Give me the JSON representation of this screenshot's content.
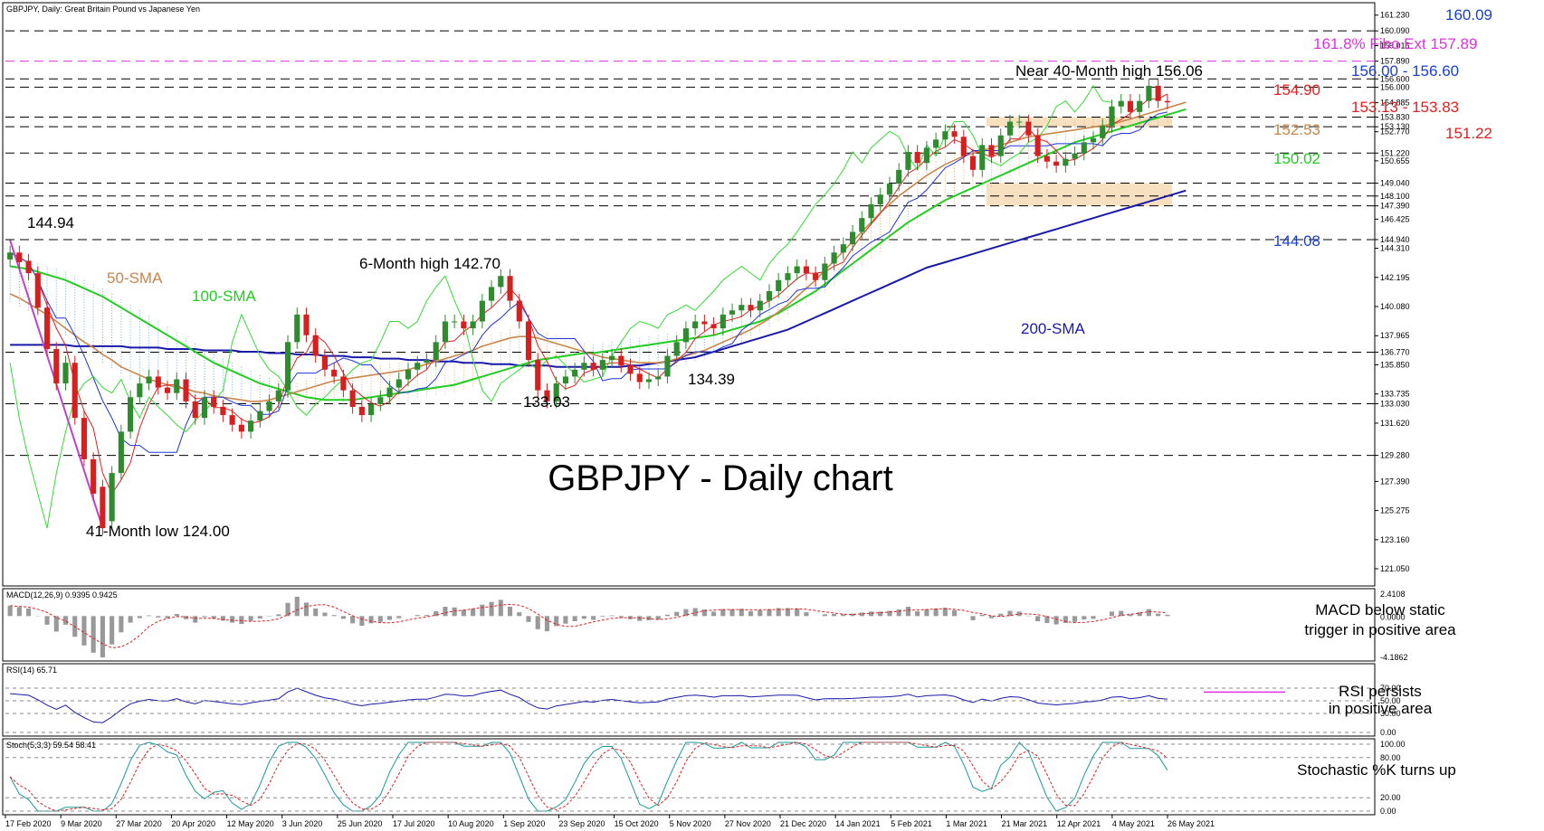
{
  "colors": {
    "price_up": "#2e8b2e",
    "price_down": "#d62020",
    "sma50": "#c8864a",
    "sma100": "#22cc22",
    "sma200": "#1a1aa8",
    "tenkan": "#e02020",
    "kijun": "#2035d8",
    "chikou": "#33dd33",
    "cloud_bull": "#f0a060",
    "cloud_bear": "#5aa0e8",
    "fib": "#e030e0",
    "zone": "#f5d8b0",
    "trend": "#c040d0"
  },
  "chart_data": [
    {
      "type": "candlestick",
      "title": "GBPJPY, Daily:  Great Britain Pound vs Japanese Yen",
      "big_title": "GBPJPY - Daily chart",
      "ylim": [
        120.0,
        162.0
      ],
      "x_tick_labels": [
        "17 Feb 2020",
        "9 Mar 2020",
        "27 Mar 2020",
        "20 Apr 2020",
        "12 May 2020",
        "3 Jun 2020",
        "25 Jun 2020",
        "17 Jul 2020",
        "10 Aug 2020",
        "1 Sep 2020",
        "23 Sep 2020",
        "15 Oct 2020",
        "5 Nov 2020",
        "27 Nov 2020",
        "21 Dec 2020",
        "14 Jan 2021",
        "5 Feb 2021",
        "1 Mar 2021",
        "21 Mar 2021",
        "12 Apr 2021",
        "4 May 2021",
        "26 May 2021"
      ],
      "y_tick_labels": [
        "161.230",
        "160.090",
        "159.015",
        "157.890",
        "156.600",
        "156.000",
        "154.885",
        "153.830",
        "153.130",
        "152.770",
        "151.220",
        "150.655",
        "149.040",
        "148.100",
        "147.390",
        "146.425",
        "144.940",
        "144.310",
        "142.195",
        "140.080",
        "137.965",
        "136.770",
        "135.850",
        "133.735",
        "133.030",
        "131.620",
        "129.280",
        "127.390",
        "125.275",
        "123.160",
        "121.050"
      ],
      "horizontal_levels": [
        160.09,
        157.89,
        156.6,
        156.0,
        153.83,
        153.13,
        151.22,
        149.04,
        148.1,
        147.39,
        144.94,
        136.77,
        133.03,
        129.28
      ],
      "price_close": [
        144.0,
        143.3,
        142.5,
        140.0,
        137.0,
        134.5,
        136.0,
        132.0,
        129.0,
        126.5,
        124.0,
        128.0,
        131.0,
        133.5,
        134.5,
        135.0,
        134.2,
        133.8,
        134.8,
        133.2,
        132.0,
        133.5,
        132.8,
        132.2,
        131.5,
        131.0,
        131.8,
        132.5,
        133.2,
        134.0,
        137.5,
        139.5,
        138.0,
        136.5,
        135.5,
        135.0,
        134.0,
        132.8,
        132.2,
        133.0,
        133.5,
        134.2,
        134.8,
        135.5,
        136.0,
        136.2,
        137.5,
        139.0,
        139.0,
        138.5,
        139.0,
        140.5,
        141.5,
        142.3,
        140.5,
        139.0,
        136.2,
        134.0,
        133.2,
        134.5,
        135.0,
        135.5,
        136.0,
        135.5,
        136.2,
        136.5,
        135.8,
        135.2,
        134.6,
        134.8,
        135.0,
        136.5,
        137.5,
        138.5,
        139.0,
        138.8,
        138.5,
        139.5,
        139.8,
        140.2,
        139.8,
        140.5,
        141.2,
        142.0,
        142.5,
        143.0,
        142.5,
        142.0,
        143.2,
        144.0,
        144.6,
        145.5,
        146.5,
        147.5,
        148.2,
        149.0,
        150.0,
        151.3,
        150.5,
        151.6,
        152.2,
        152.8,
        152.4,
        151.0,
        150.0,
        151.8,
        151.0,
        152.5,
        153.5,
        153.5,
        152.5,
        151.0,
        150.6,
        150.3,
        150.8,
        151.2,
        152.0,
        152.3,
        153.2,
        154.6,
        155.0,
        154.2,
        155.0,
        156.1,
        155.0,
        154.9
      ],
      "price_open": [
        143.5,
        144.0,
        143.4,
        142.5,
        140.0,
        137.0,
        134.5,
        136.0,
        132.0,
        129.0,
        127.0,
        124.5,
        128.0,
        131.0,
        133.5,
        134.5,
        135.0,
        134.2,
        133.8,
        134.8,
        133.2,
        132.0,
        133.5,
        132.8,
        132.2,
        131.5,
        131.0,
        131.8,
        132.5,
        133.2,
        134.0,
        137.5,
        139.5,
        138.0,
        136.5,
        135.5,
        135.0,
        134.0,
        132.8,
        132.2,
        133.0,
        133.5,
        134.2,
        134.8,
        135.5,
        136.0,
        136.2,
        137.5,
        139.0,
        139.0,
        138.5,
        139.0,
        140.5,
        141.5,
        142.3,
        140.5,
        139.0,
        136.2,
        134.0,
        133.2,
        134.5,
        135.0,
        135.5,
        136.0,
        135.5,
        136.2,
        136.5,
        135.8,
        135.2,
        134.6,
        134.8,
        135.0,
        136.5,
        137.5,
        138.5,
        139.0,
        138.8,
        138.5,
        139.5,
        139.8,
        140.2,
        139.8,
        140.5,
        141.2,
        142.0,
        142.5,
        143.0,
        142.5,
        142.0,
        143.2,
        144.0,
        144.6,
        145.5,
        146.5,
        147.5,
        148.2,
        149.0,
        150.0,
        151.3,
        150.5,
        151.6,
        152.2,
        152.8,
        152.4,
        151.0,
        150.0,
        151.8,
        151.0,
        152.5,
        153.5,
        153.5,
        152.5,
        151.0,
        150.6,
        150.3,
        150.8,
        151.2,
        152.0,
        152.3,
        153.2,
        154.6,
        155.0,
        154.2,
        155.0,
        156.1,
        155.0
      ],
      "sma50": [
        141.0,
        140.7,
        140.3,
        139.9,
        139.5,
        139.0,
        138.5,
        138.0,
        137.5,
        137.1,
        136.6,
        136.2,
        135.7,
        135.4,
        135.1,
        134.8,
        134.6,
        134.4,
        134.2,
        134.1,
        133.9,
        133.8,
        133.6,
        133.5,
        133.4,
        133.3,
        133.2,
        133.2,
        133.3,
        133.5,
        133.7,
        133.9,
        134.1,
        134.3,
        134.5,
        134.7,
        134.8,
        134.9,
        135.0,
        135.1,
        135.2,
        135.3,
        135.4,
        135.5,
        135.7,
        135.9,
        136.1,
        136.3,
        136.5,
        136.7,
        136.9,
        137.2,
        137.4,
        137.6,
        137.8,
        137.9,
        137.9,
        137.8,
        137.6,
        137.4,
        137.2,
        137.0,
        136.8,
        136.6,
        136.4,
        136.3,
        136.2,
        136.1,
        136.0,
        136.0,
        136.0,
        136.1,
        136.3,
        136.5,
        136.7,
        136.9,
        137.2,
        137.5,
        137.8,
        138.1,
        138.4,
        138.8,
        139.2,
        139.7,
        140.2,
        140.8,
        141.4,
        142.0,
        142.7,
        143.4,
        144.1,
        144.8,
        145.5,
        146.2,
        146.9,
        147.5,
        148.1,
        148.6,
        149.1,
        149.6,
        150.0,
        150.4,
        150.7,
        151.0,
        151.2,
        151.4,
        151.6,
        151.8,
        152.0,
        152.2,
        152.4,
        152.5,
        152.6,
        152.7,
        152.8,
        152.9,
        153.0,
        153.1,
        153.2,
        153.3,
        153.5,
        153.7,
        153.9,
        154.1,
        154.3,
        154.5,
        154.7,
        154.9
      ],
      "sma100": [
        143.0,
        142.9,
        142.8,
        142.6,
        142.4,
        142.2,
        142.0,
        141.7,
        141.4,
        141.1,
        140.8,
        140.4,
        140.0,
        139.6,
        139.2,
        138.8,
        138.4,
        138.0,
        137.6,
        137.2,
        136.8,
        136.4,
        136.0,
        135.7,
        135.4,
        135.1,
        134.8,
        134.5,
        134.3,
        134.1,
        133.9,
        133.7,
        133.5,
        133.4,
        133.3,
        133.3,
        133.3,
        133.3,
        133.4,
        133.5,
        133.6,
        133.7,
        133.8,
        133.9,
        134.0,
        134.1,
        134.2,
        134.3,
        134.4,
        134.6,
        134.8,
        135.0,
        135.2,
        135.4,
        135.6,
        135.8,
        136.0,
        136.2,
        136.3,
        136.4,
        136.5,
        136.6,
        136.7,
        136.7,
        136.8,
        136.9,
        137.0,
        137.1,
        137.2,
        137.3,
        137.4,
        137.5,
        137.6,
        137.7,
        137.8,
        137.9,
        138.0,
        138.2,
        138.4,
        138.6,
        138.8,
        139.0,
        139.3,
        139.6,
        140.0,
        140.4,
        140.8,
        141.2,
        141.7,
        142.2,
        142.7,
        143.2,
        143.7,
        144.2,
        144.7,
        145.2,
        145.7,
        146.2,
        146.6,
        147.0,
        147.4,
        147.8,
        148.1,
        148.4,
        148.7,
        149.0,
        149.3,
        149.6,
        149.9,
        150.2,
        150.5,
        150.8,
        151.1,
        151.4,
        151.7,
        152.0,
        152.2,
        152.4,
        152.6,
        152.8,
        153.0,
        153.2,
        153.4,
        153.6,
        153.8,
        154.0,
        154.2,
        154.4
      ],
      "sma200": [
        137.3,
        137.3,
        137.3,
        137.3,
        137.3,
        137.3,
        137.3,
        137.2,
        137.2,
        137.2,
        137.2,
        137.2,
        137.2,
        137.1,
        137.1,
        137.1,
        137.1,
        137.0,
        137.0,
        137.0,
        137.0,
        136.9,
        136.9,
        136.9,
        136.9,
        136.8,
        136.8,
        136.8,
        136.7,
        136.7,
        136.7,
        136.6,
        136.6,
        136.6,
        136.5,
        136.5,
        136.5,
        136.4,
        136.4,
        136.4,
        136.3,
        136.3,
        136.3,
        136.2,
        136.2,
        136.2,
        136.1,
        136.1,
        136.1,
        136.0,
        136.0,
        136.0,
        135.9,
        135.9,
        135.9,
        135.8,
        135.8,
        135.8,
        135.8,
        135.7,
        135.7,
        135.7,
        135.7,
        135.7,
        135.7,
        135.7,
        135.7,
        135.8,
        135.8,
        135.9,
        136.0,
        136.1,
        136.2,
        136.3,
        136.4,
        136.6,
        136.8,
        137.0,
        137.2,
        137.4,
        137.6,
        137.8,
        138.0,
        138.2,
        138.4,
        138.7,
        139.0,
        139.3,
        139.6,
        139.9,
        140.2,
        140.5,
        140.8,
        141.1,
        141.4,
        141.7,
        142.0,
        142.3,
        142.6,
        142.9,
        143.1,
        143.3,
        143.5,
        143.7,
        143.9,
        144.1,
        144.3,
        144.5,
        144.7,
        144.9,
        145.1,
        145.3,
        145.5,
        145.7,
        145.9,
        146.1,
        146.3,
        146.5,
        146.7,
        146.9,
        147.1,
        147.3,
        147.5,
        147.7,
        147.9,
        148.1,
        148.3,
        148.5
      ],
      "annotations": {
        "high_14494": "144.94",
        "sma50_label": "50-SMA",
        "sma100_label": "100-SMA",
        "high_6m": "6-Month high 142.70",
        "low_13303": "133.03",
        "low_13439": "134.39",
        "low_41m": "41-Month low 124.00",
        "sma200_label": "200-SMA",
        "high_40m": "Near 40-Month high 156.06",
        "lvl_16009": "160.09",
        "fibo": "161.8% Fibo Ext 157.89",
        "range_156": "156.00 - 156.60",
        "lvl_15490": "154.90",
        "range_153": "153.13 - 153.83",
        "lvl_15253": "152.53",
        "lvl_15122": "151.22",
        "lvl_15002": "150.02",
        "lvl_14408": "144.08"
      }
    },
    {
      "type": "bar",
      "title": "MACD(12,26,9) 0.9395 0.9425",
      "y_tick_labels": [
        "2.4108",
        "0.0000",
        "-4.1862"
      ],
      "ylim": [
        -4.1862,
        2.4108
      ],
      "annotation": [
        "MACD below static",
        "trigger in positive area"
      ]
    },
    {
      "type": "line",
      "title": "RSI(14) 65.71",
      "y_tick_labels": [
        "70.00",
        "50.00",
        "30.00",
        "0.00"
      ],
      "ylim": [
        0,
        100
      ],
      "annotation": [
        "RSI persists",
        "in positive area"
      ]
    },
    {
      "type": "line",
      "title": "Stoch(5,3,3) 59.54 58.41",
      "y_tick_labels": [
        "100.00",
        "80.00",
        "20.00",
        "0.00"
      ],
      "ylim": [
        0,
        100
      ],
      "annotation": [
        "Stochastic %K turns up"
      ]
    }
  ]
}
